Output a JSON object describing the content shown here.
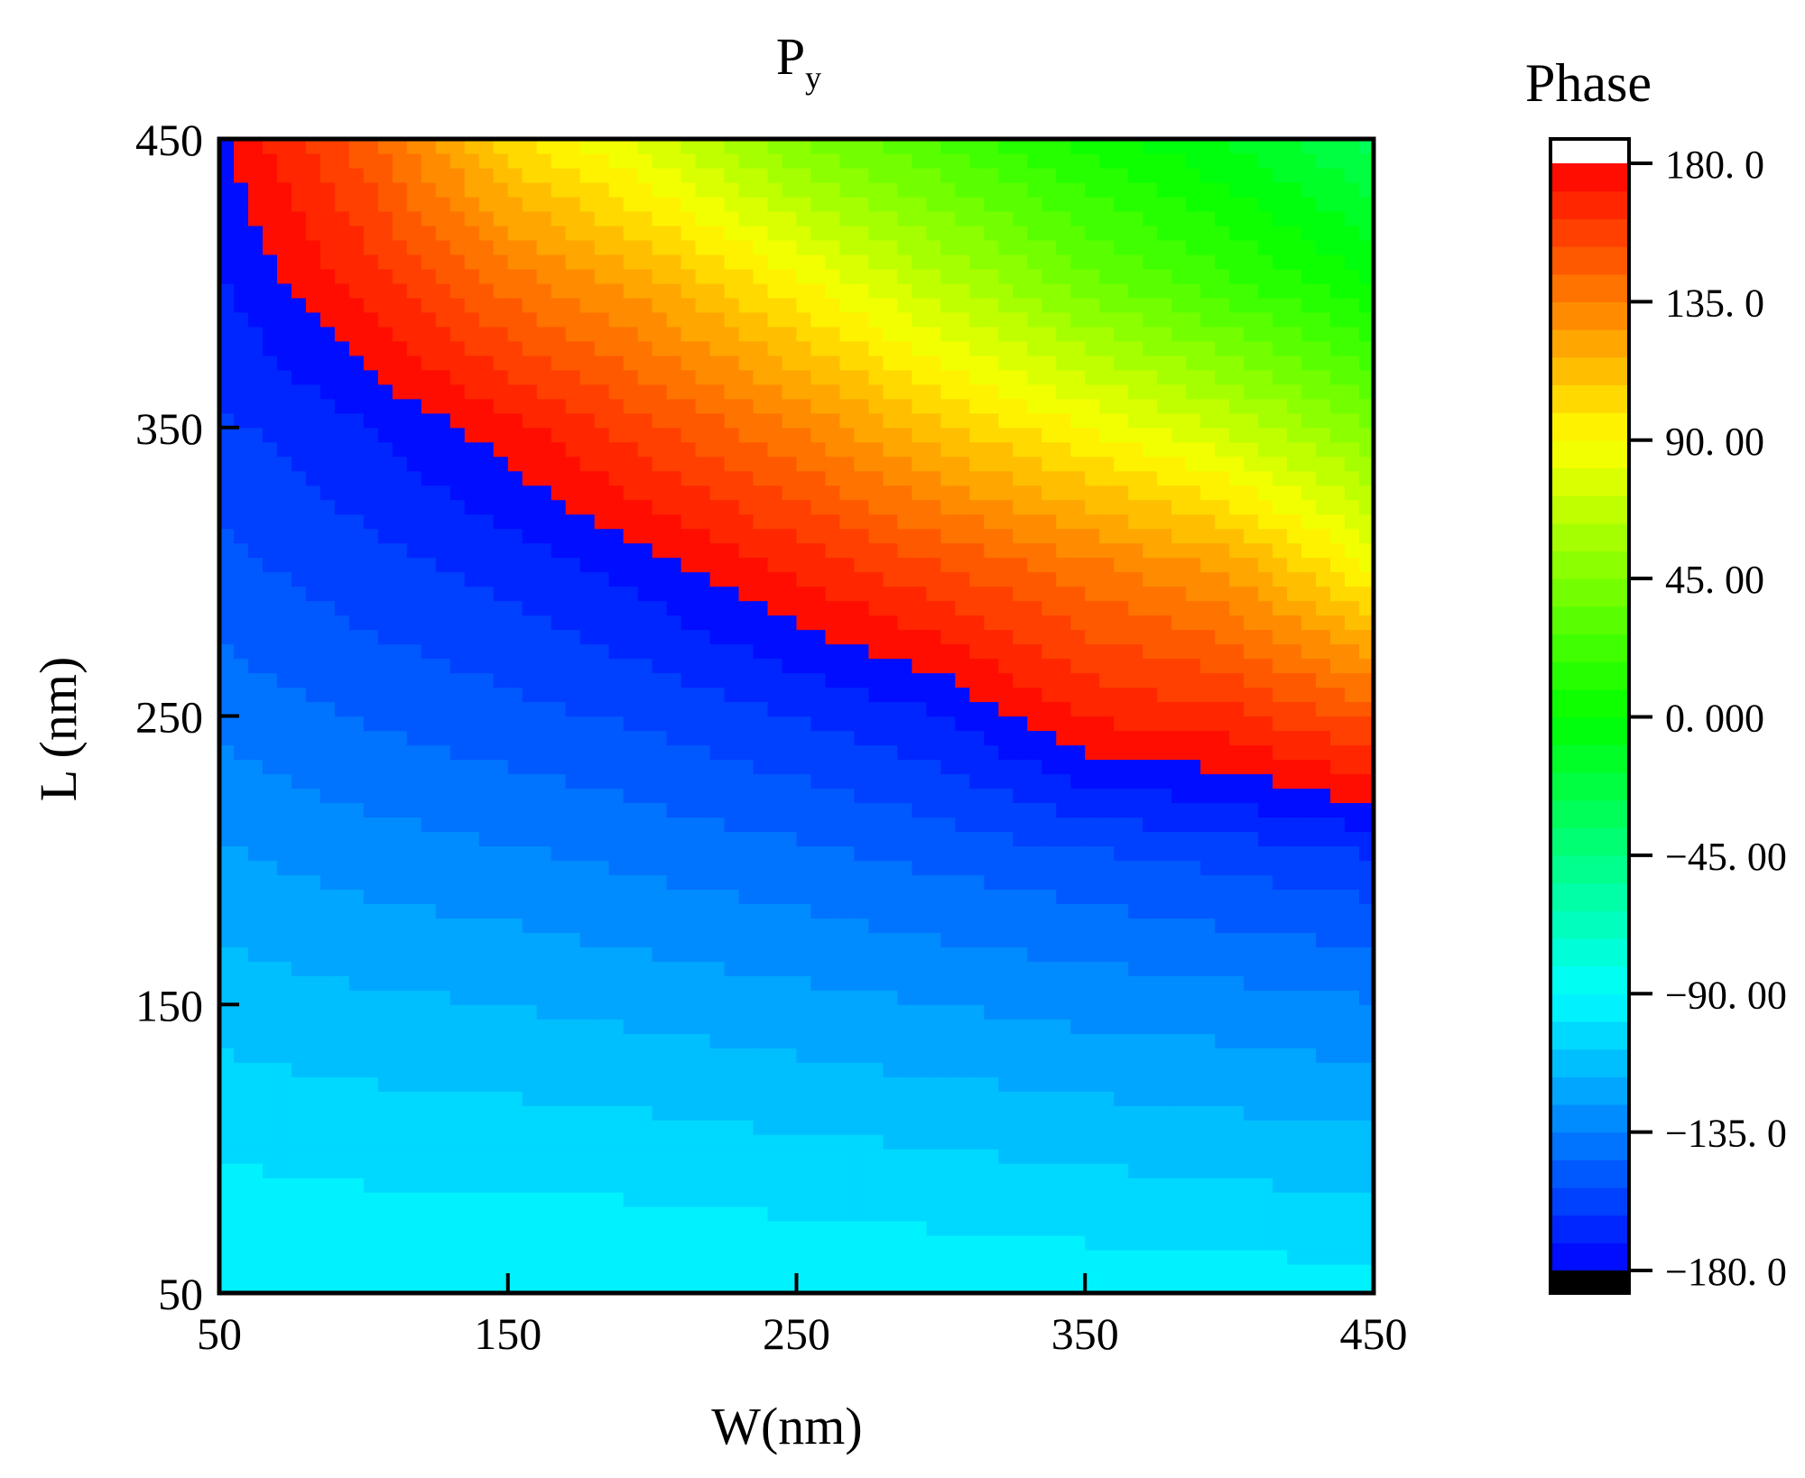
{
  "chart_data": {
    "type": "heatmap",
    "title": "P",
    "title_subscript": "y",
    "xlabel": "W(nm)",
    "ylabel": "L (nm)",
    "xlim": [
      50,
      450
    ],
    "ylim": [
      50,
      450
    ],
    "xticks": [
      "50",
      "150",
      "250",
      "350",
      "450"
    ],
    "yticks": [
      "50",
      "150",
      "250",
      "350",
      "450"
    ],
    "x": [
      50,
      100,
      150,
      200,
      250,
      300,
      350,
      400,
      450
    ],
    "y": [
      50,
      100,
      150,
      200,
      250,
      300,
      350,
      400,
      450
    ],
    "z_description_note": "",
    "z": [
      [
        -90,
        -90,
        -90,
        -90,
        -91,
        -92,
        -93,
        -94,
        -95
      ],
      [
        -100,
        -102,
        -103,
        -104,
        -106,
        -108,
        -110,
        -112,
        -114
      ],
      [
        -112,
        -115,
        -117,
        -120,
        -123,
        -126,
        -129,
        -131,
        -134
      ],
      [
        -124,
        -130,
        -133,
        -137,
        -141,
        -146,
        -150,
        -155,
        -160
      ],
      [
        -138,
        -145,
        -150,
        -155,
        -162,
        -170,
        170,
        165,
        150
      ],
      [
        -150,
        -158,
        -165,
        -175,
        170,
        155,
        140,
        125,
        90
      ],
      [
        -160,
        -170,
        175,
        155,
        135,
        110,
        90,
        70,
        45
      ],
      [
        -170,
        168,
        140,
        120,
        92,
        65,
        40,
        20,
        0
      ],
      [
        -178,
        148,
        102,
        75,
        45,
        25,
        5,
        -10,
        -30
      ]
    ],
    "colorbar": {
      "title": "Phase",
      "range": [
        -180,
        180
      ],
      "levels": 40,
      "ticks": [
        {
          "value": 180,
          "label": "180. 0"
        },
        {
          "value": 135,
          "label": "135. 0"
        },
        {
          "value": 90,
          "label": "90. 00"
        },
        {
          "value": 45,
          "label": "45. 00"
        },
        {
          "value": 0,
          "label": "0. 000"
        },
        {
          "value": -45,
          "label": "−45. 00"
        },
        {
          "value": -90,
          "label": "−90. 00"
        },
        {
          "value": -135,
          "label": "−135. 0"
        },
        {
          "value": -180,
          "label": "−180. 0"
        }
      ],
      "above_color": "#ffffff",
      "below_color": "#000000",
      "colormap": [
        "#0000ff",
        "#00ffff",
        "#00ff00",
        "#ffff00",
        "#ff0000"
      ]
    },
    "grid": false
  }
}
